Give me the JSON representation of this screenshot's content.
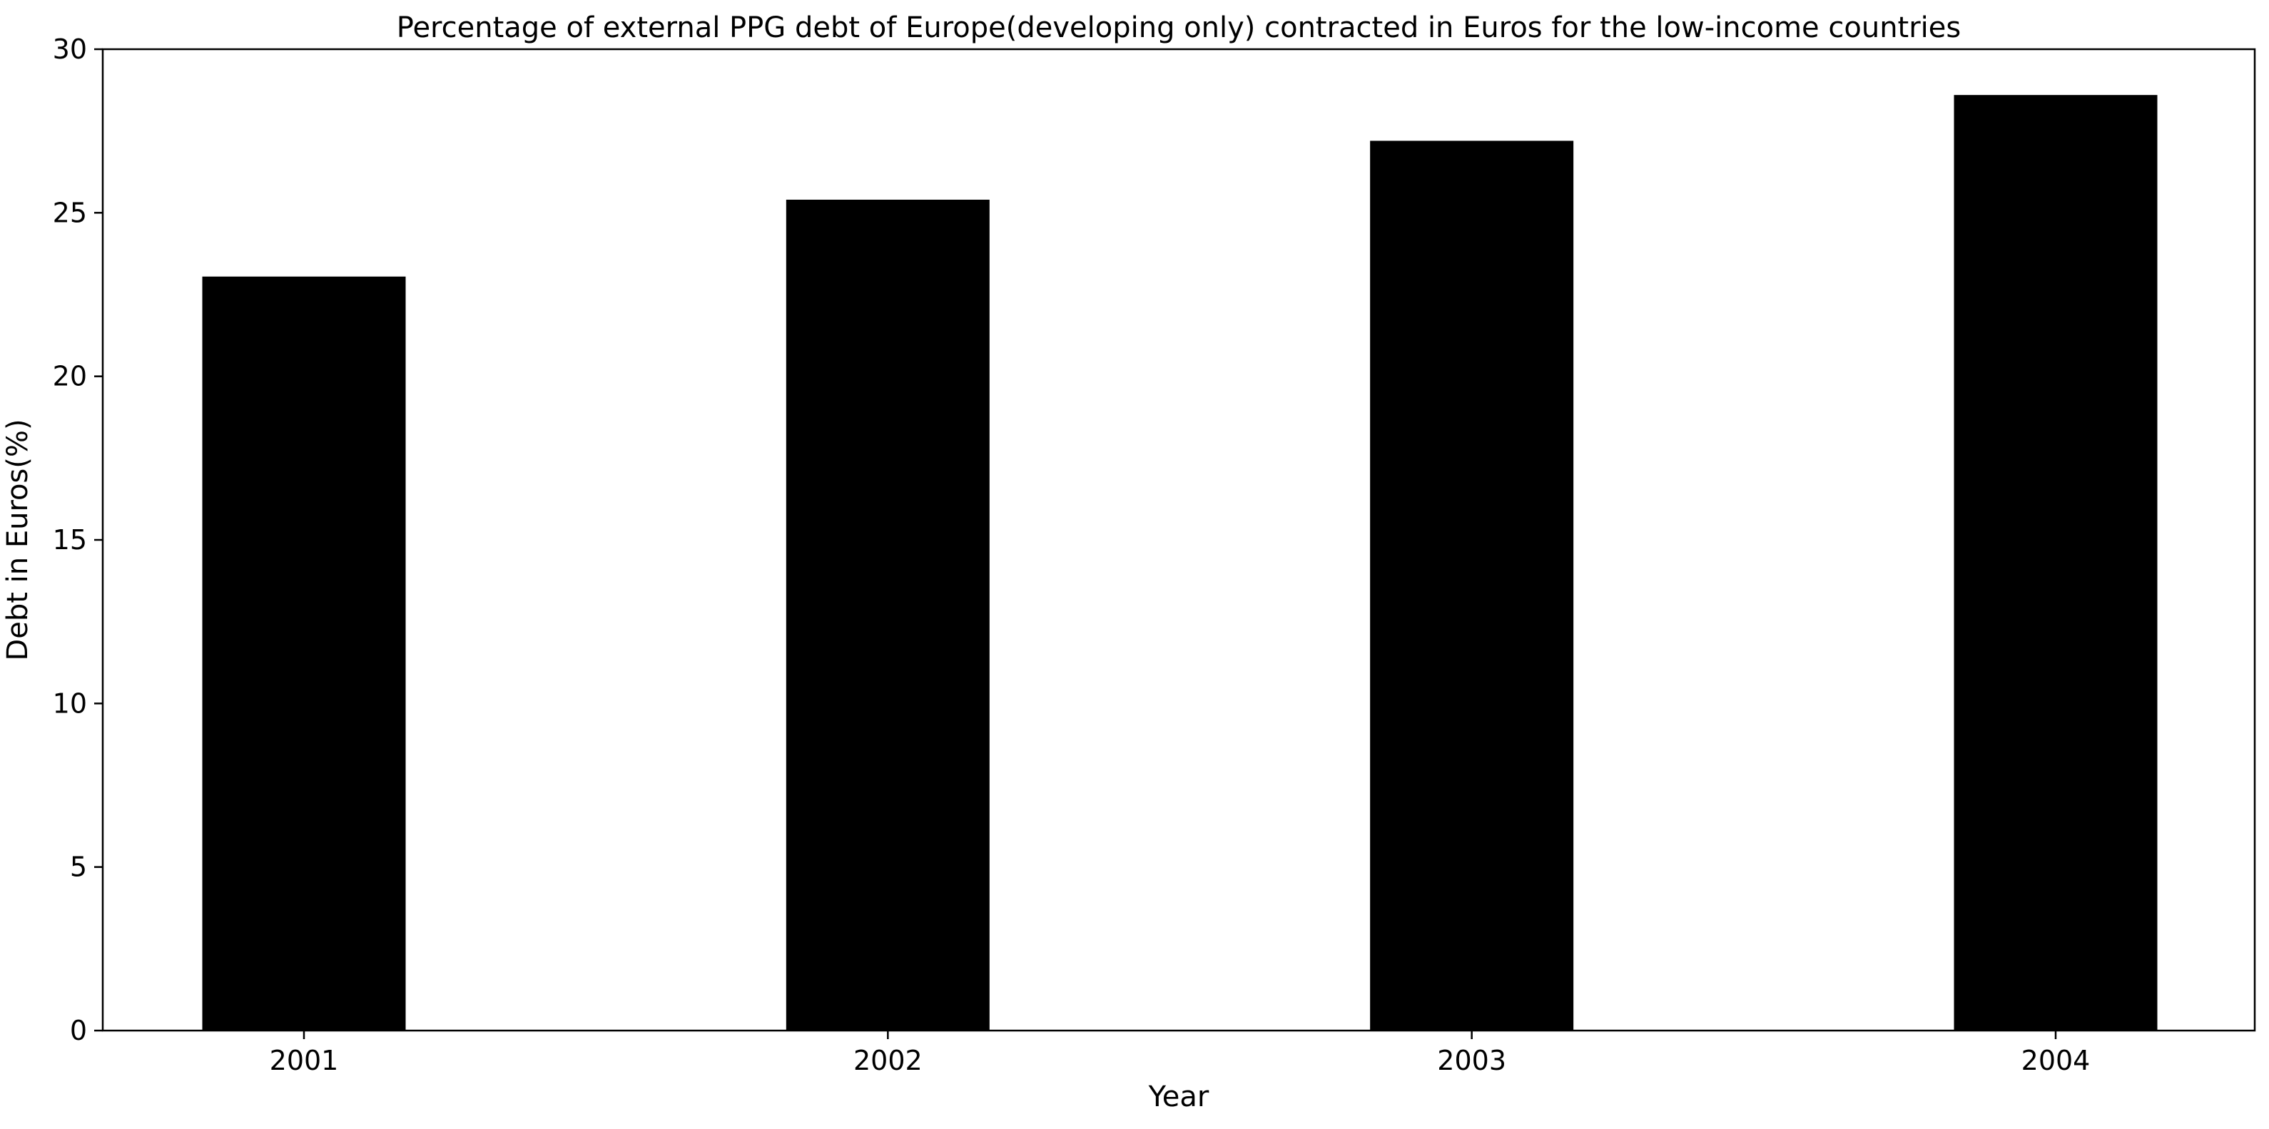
{
  "chart_data": {
    "type": "bar",
    "title": "Percentage of external PPG debt of Europe(developing only) contracted in Euros for the low-income countries",
    "xlabel": "Year",
    "ylabel": "Debt in Euros(%)",
    "categories": [
      "2001",
      "2002",
      "2003",
      "2004"
    ],
    "values": [
      23.05,
      25.4,
      27.2,
      28.6
    ],
    "ylim": [
      0,
      30
    ],
    "yticks": [
      0,
      5,
      10,
      15,
      20,
      25,
      30
    ],
    "grid": false,
    "legend": "none",
    "bar_color": "#000000"
  }
}
